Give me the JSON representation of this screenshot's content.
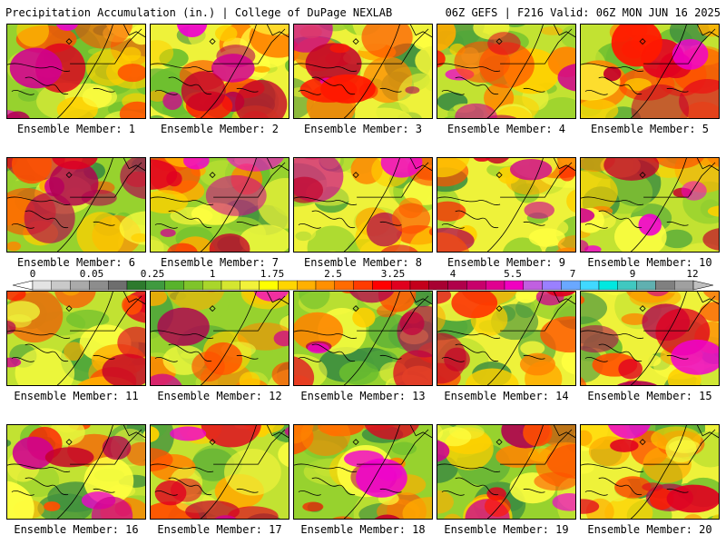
{
  "header": {
    "left": "Precipitation Accumulation (in.) | College of DuPage NEXLAB",
    "right": "06Z GEFS | F216 Valid: 06Z MON JUN 16 2025"
  },
  "panels": [
    {
      "label": "Ensemble Member: 1"
    },
    {
      "label": "Ensemble Member: 2"
    },
    {
      "label": "Ensemble Member: 3"
    },
    {
      "label": "Ensemble Member: 4"
    },
    {
      "label": "Ensemble Member: 5"
    },
    {
      "label": "Ensemble Member: 6"
    },
    {
      "label": "Ensemble Member: 7"
    },
    {
      "label": "Ensemble Member: 8"
    },
    {
      "label": "Ensemble Member: 9"
    },
    {
      "label": "Ensemble Member: 10"
    },
    {
      "label": "Ensemble Member: 11"
    },
    {
      "label": "Ensemble Member: 12"
    },
    {
      "label": "Ensemble Member: 13"
    },
    {
      "label": "Ensemble Member: 14"
    },
    {
      "label": "Ensemble Member: 15"
    },
    {
      "label": "Ensemble Member: 16"
    },
    {
      "label": "Ensemble Member: 17"
    },
    {
      "label": "Ensemble Member: 18"
    },
    {
      "label": "Ensemble Member: 19"
    },
    {
      "label": "Ensemble Member: 20"
    }
  ],
  "colorbar": {
    "labels": [
      "0",
      "0.05",
      "0.25",
      "1",
      "1.75",
      "2.5",
      "3.25",
      "4",
      "5.5",
      "7",
      "9",
      "12"
    ],
    "colors": [
      "#ffffff",
      "#e3e3e3",
      "#c9c9c9",
      "#aaaaaa",
      "#8d8d8d",
      "#6e6e6e",
      "#2d7a2d",
      "#3f9a3f",
      "#58b32c",
      "#7fc42a",
      "#a9d62b",
      "#d4e630",
      "#f2f23a",
      "#ffff00",
      "#ffd500",
      "#ffb000",
      "#ff9000",
      "#ff6b00",
      "#ff3c00",
      "#ff0000",
      "#e0001e",
      "#c4001b",
      "#a80032",
      "#b0004a",
      "#c8006b",
      "#e00090",
      "#f000c0",
      "#c060e0",
      "#9a80ff",
      "#6aa8ff",
      "#40d8ff",
      "#00e8e0",
      "#40c8c0",
      "#60b0b0",
      "#808080",
      "#a0a0a0",
      "#c0c0c0"
    ]
  }
}
